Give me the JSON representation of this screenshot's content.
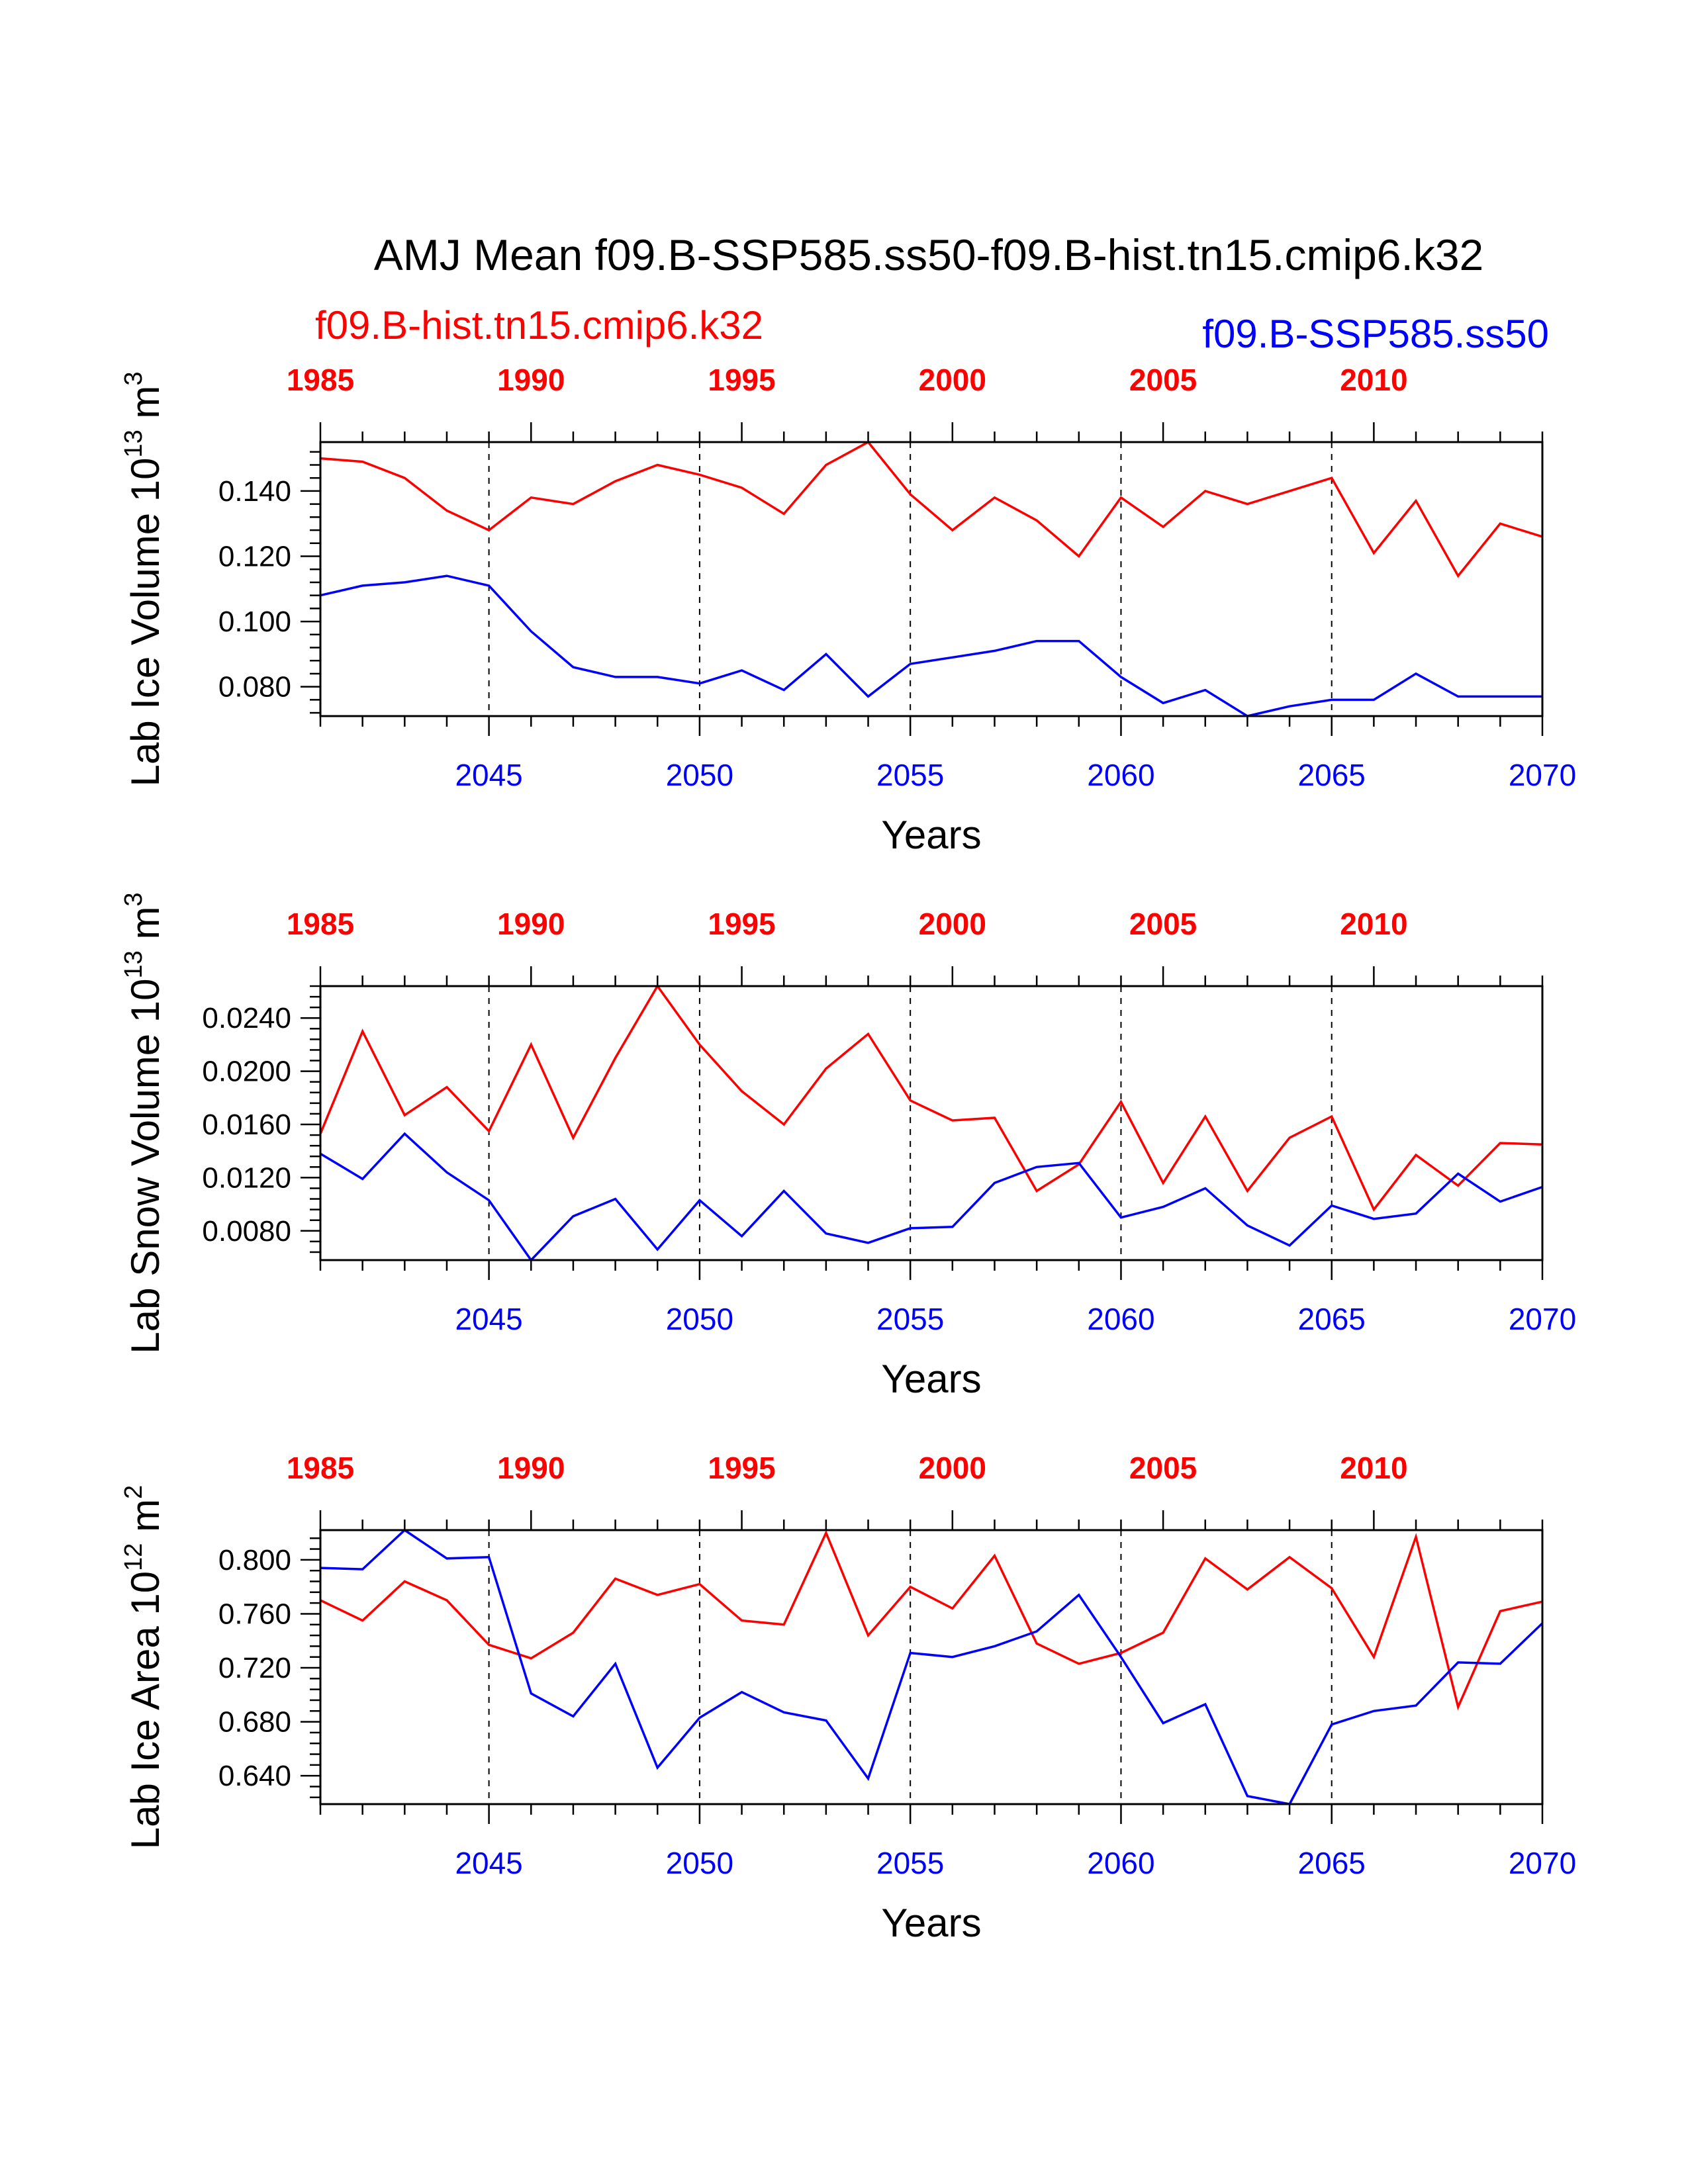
{
  "title": "AMJ Mean f09.B-SSP585.ss50-f09.B-hist.tn15.cmip6.k32",
  "legend": {
    "hist_label": "f09.B-hist.tn15.cmip6.k32",
    "ssp_label": "f09.B-SSP585.ss50"
  },
  "colors": {
    "hist": "#ff0000",
    "ssp": "#0000ff",
    "axis": "#000000"
  },
  "chart_data": [
    {
      "type": "line",
      "ylabel_main": "Lab Ice Volume 10",
      "ylabel_exp": "13",
      "ylabel_unit": " m",
      "ylabel_unit_exp": "3",
      "xlabel": "Years",
      "ylim": [
        0.071,
        0.155
      ],
      "yticks": [
        0.08,
        0.1,
        0.12,
        0.14
      ],
      "ytick_labels": [
        "0.080",
        "0.100",
        "0.120",
        "0.140"
      ],
      "bottom_axis": {
        "range": [
          2041,
          2070
        ],
        "ticks": [
          2045,
          2050,
          2055,
          2060,
          2065,
          2070
        ],
        "tick_labels": [
          "2045",
          "2050",
          "2055",
          "2060",
          "2065",
          "2070"
        ]
      },
      "top_axis": {
        "range": [
          1985,
          2014
        ],
        "ticks": [
          1985,
          1990,
          1995,
          2000,
          2005,
          2010
        ],
        "tick_labels": [
          "1985",
          "1990",
          "1995",
          "2000",
          "2005",
          "2010"
        ]
      },
      "series": [
        {
          "color": "#ff0000",
          "axis": "top",
          "x": [
            1985,
            1986,
            1987,
            1988,
            1989,
            1990,
            1991,
            1992,
            1993,
            1994,
            1995,
            1996,
            1997,
            1998,
            1999,
            2000,
            2001,
            2002,
            2003,
            2004,
            2005,
            2006,
            2007,
            2008,
            2009,
            2010,
            2011,
            2012,
            2013,
            2014
          ],
          "values": [
            0.15,
            0.149,
            0.144,
            0.134,
            0.128,
            0.138,
            0.136,
            0.143,
            0.148,
            0.145,
            0.141,
            0.133,
            0.148,
            0.155,
            0.139,
            0.128,
            0.138,
            0.131,
            0.12,
            0.138,
            0.129,
            0.14,
            0.136,
            0.14,
            0.144,
            0.121,
            0.137,
            0.114,
            0.13,
            0.126
          ]
        },
        {
          "color": "#0000ff",
          "axis": "bottom",
          "x": [
            2041,
            2042,
            2043,
            2044,
            2045,
            2046,
            2047,
            2048,
            2049,
            2050,
            2051,
            2052,
            2053,
            2054,
            2055,
            2056,
            2057,
            2058,
            2059,
            2060,
            2061,
            2062,
            2063,
            2064,
            2065,
            2066,
            2067,
            2068,
            2069,
            2070
          ],
          "values": [
            0.108,
            0.111,
            0.112,
            0.114,
            0.111,
            0.097,
            0.086,
            0.083,
            0.083,
            0.081,
            0.085,
            0.079,
            0.09,
            0.077,
            0.087,
            0.089,
            0.091,
            0.094,
            0.094,
            0.083,
            0.075,
            0.079,
            0.071,
            0.074,
            0.076,
            0.076,
            0.084,
            0.077,
            0.077,
            0.077
          ]
        }
      ]
    },
    {
      "type": "line",
      "ylabel_main": "Lab Snow Volume 10",
      "ylabel_exp": "13",
      "ylabel_unit": " m",
      "ylabel_unit_exp": "3",
      "xlabel": "Years",
      "ylim": [
        0.0058,
        0.0264
      ],
      "yticks": [
        0.008,
        0.012,
        0.016,
        0.02,
        0.024
      ],
      "ytick_labels": [
        "0.0080",
        "0.0120",
        "0.0160",
        "0.0200",
        "0.0240"
      ],
      "bottom_axis": {
        "range": [
          2041,
          2070
        ],
        "ticks": [
          2045,
          2050,
          2055,
          2060,
          2065,
          2070
        ],
        "tick_labels": [
          "2045",
          "2050",
          "2055",
          "2060",
          "2065",
          "2070"
        ]
      },
      "top_axis": {
        "range": [
          1985,
          2014
        ],
        "ticks": [
          1985,
          1990,
          1995,
          2000,
          2005,
          2010
        ],
        "tick_labels": [
          "1985",
          "1990",
          "1995",
          "2000",
          "2005",
          "2010"
        ]
      },
      "series": [
        {
          "color": "#ff0000",
          "axis": "top",
          "x": [
            1985,
            1986,
            1987,
            1988,
            1989,
            1990,
            1991,
            1992,
            1993,
            1994,
            1995,
            1996,
            1997,
            1998,
            1999,
            2000,
            2001,
            2002,
            2003,
            2004,
            2005,
            2006,
            2007,
            2008,
            2009,
            2010,
            2011,
            2012,
            2013,
            2014
          ],
          "values": [
            0.0153,
            0.023,
            0.0167,
            0.0188,
            0.0155,
            0.022,
            0.015,
            0.021,
            0.0264,
            0.022,
            0.0185,
            0.016,
            0.0202,
            0.0228,
            0.0178,
            0.0163,
            0.0165,
            0.011,
            0.013,
            0.0177,
            0.0116,
            0.0166,
            0.011,
            0.015,
            0.0166,
            0.0096,
            0.0137,
            0.0114,
            0.0146,
            0.0145
          ]
        },
        {
          "color": "#0000ff",
          "axis": "bottom",
          "x": [
            2041,
            2042,
            2043,
            2044,
            2045,
            2046,
            2047,
            2048,
            2049,
            2050,
            2051,
            2052,
            2053,
            2054,
            2055,
            2056,
            2057,
            2058,
            2059,
            2060,
            2061,
            2062,
            2063,
            2064,
            2065,
            2066,
            2067,
            2068,
            2069,
            2070
          ],
          "values": [
            0.0138,
            0.0119,
            0.0153,
            0.0124,
            0.0103,
            0.0058,
            0.0091,
            0.0104,
            0.0066,
            0.0103,
            0.0076,
            0.011,
            0.0078,
            0.0071,
            0.0082,
            0.0083,
            0.0116,
            0.0128,
            0.0131,
            0.009,
            0.0098,
            0.0112,
            0.0084,
            0.0069,
            0.0099,
            0.0089,
            0.0093,
            0.0123,
            0.0102,
            0.0113
          ]
        }
      ]
    },
    {
      "type": "line",
      "ylabel_main": "Lab Ice Area 10",
      "ylabel_exp": "12",
      "ylabel_unit": " m",
      "ylabel_unit_exp": "2",
      "xlabel": "Years",
      "ylim": [
        0.619,
        0.822
      ],
      "yticks": [
        0.64,
        0.68,
        0.72,
        0.76,
        0.8
      ],
      "ytick_labels": [
        "0.640",
        "0.680",
        "0.720",
        "0.760",
        "0.800"
      ],
      "bottom_axis": {
        "range": [
          2041,
          2070
        ],
        "ticks": [
          2045,
          2050,
          2055,
          2060,
          2065,
          2070
        ],
        "tick_labels": [
          "2045",
          "2050",
          "2055",
          "2060",
          "2065",
          "2070"
        ]
      },
      "top_axis": {
        "range": [
          1985,
          2014
        ],
        "ticks": [
          1985,
          1990,
          1995,
          2000,
          2005,
          2010
        ],
        "tick_labels": [
          "1985",
          "1990",
          "1995",
          "2000",
          "2005",
          "2010"
        ]
      },
      "series": [
        {
          "color": "#ff0000",
          "axis": "top",
          "x": [
            1985,
            1986,
            1987,
            1988,
            1989,
            1990,
            1991,
            1992,
            1993,
            1994,
            1995,
            1996,
            1997,
            1998,
            1999,
            2000,
            2001,
            2002,
            2003,
            2004,
            2005,
            2006,
            2007,
            2008,
            2009,
            2010,
            2011,
            2012,
            2013,
            2014
          ],
          "values": [
            0.77,
            0.755,
            0.784,
            0.77,
            0.737,
            0.727,
            0.746,
            0.786,
            0.774,
            0.782,
            0.755,
            0.752,
            0.82,
            0.744,
            0.78,
            0.764,
            0.803,
            0.738,
            0.723,
            0.731,
            0.746,
            0.801,
            0.778,
            0.802,
            0.779,
            0.728,
            0.817,
            0.691,
            0.762,
            0.769
          ]
        },
        {
          "color": "#0000ff",
          "axis": "bottom",
          "x": [
            2041,
            2042,
            2043,
            2044,
            2045,
            2046,
            2047,
            2048,
            2049,
            2050,
            2051,
            2052,
            2053,
            2054,
            2055,
            2056,
            2057,
            2058,
            2059,
            2060,
            2061,
            2062,
            2063,
            2064,
            2065,
            2066,
            2067,
            2068,
            2069,
            2070
          ],
          "values": [
            0.794,
            0.793,
            0.822,
            0.801,
            0.802,
            0.701,
            0.684,
            0.723,
            0.646,
            0.683,
            0.702,
            0.687,
            0.681,
            0.638,
            0.731,
            0.728,
            0.736,
            0.747,
            0.774,
            0.728,
            0.679,
            0.693,
            0.625,
            0.619,
            0.678,
            0.688,
            0.692,
            0.724,
            0.723,
            0.753
          ]
        }
      ]
    }
  ]
}
